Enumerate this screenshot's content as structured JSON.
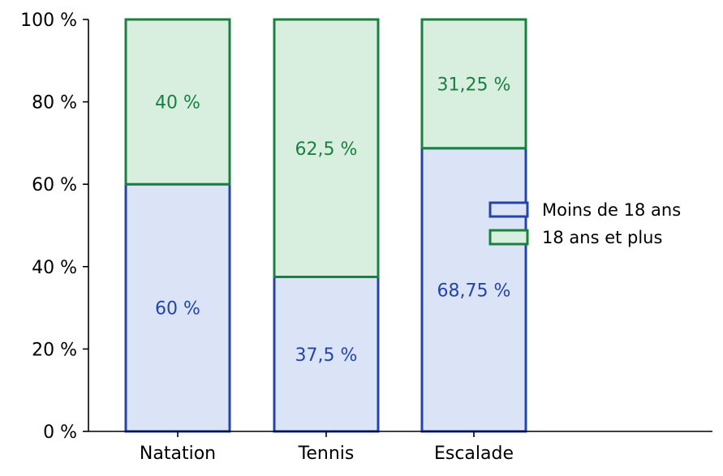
{
  "chart_data": {
    "type": "bar",
    "stacked": true,
    "normalized": true,
    "categories": [
      "Natation",
      "Tennis",
      "Escalade"
    ],
    "series": [
      {
        "name": "Moins de 18 ans",
        "values": [
          60,
          37.5,
          68.75
        ],
        "labels": [
          "60 %",
          "37,5 %",
          "68,75 %"
        ],
        "fill": "#dbe3f6",
        "stroke": "#2444a8",
        "text_color": "#2444a8"
      },
      {
        "name": "18 ans et plus",
        "values": [
          40,
          62.5,
          31.25
        ],
        "labels": [
          "40 %",
          "62,5 %",
          "31,25 %"
        ],
        "fill": "#d8efdf",
        "stroke": "#1a8040",
        "text_color": "#1a8040"
      }
    ],
    "ylim": [
      0,
      100
    ],
    "yticks": [
      0,
      20,
      40,
      60,
      80,
      100
    ],
    "ytick_labels": [
      "0 %",
      "20 %",
      "40 %",
      "60 %",
      "80 %",
      "100 %"
    ],
    "title": "",
    "xlabel": "",
    "ylabel": "",
    "grid": false,
    "legend_position": "right"
  }
}
